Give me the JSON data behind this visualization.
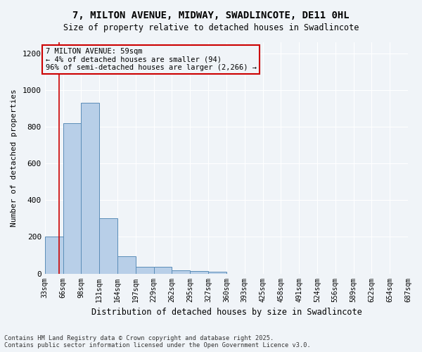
{
  "title_line1": "7, MILTON AVENUE, MIDWAY, SWADLINCOTE, DE11 0HL",
  "title_line2": "Size of property relative to detached houses in Swadlincote",
  "xlabel": "Distribution of detached houses by size in Swadlincote",
  "ylabel": "Number of detached properties",
  "bar_color": "#b8cfe8",
  "bar_edge_color": "#5b8db8",
  "annotation_box_color": "#cc0000",
  "annotation_text": "7 MILTON AVENUE: 59sqm\n← 4% of detached houses are smaller (94)\n96% of semi-detached houses are larger (2,266) →",
  "property_sqm": 59,
  "vline_x": 59,
  "bin_edges": [
    33,
    66,
    99,
    132,
    165,
    198,
    231,
    264,
    297,
    330,
    363,
    396,
    429,
    462,
    495,
    528,
    561,
    594,
    627,
    660,
    693
  ],
  "bin_labels": [
    "33sqm",
    "66sqm",
    "98sqm",
    "131sqm",
    "164sqm",
    "197sqm",
    "229sqm",
    "262sqm",
    "295sqm",
    "327sqm",
    "360sqm",
    "393sqm",
    "425sqm",
    "458sqm",
    "491sqm",
    "524sqm",
    "556sqm",
    "589sqm",
    "622sqm",
    "654sqm",
    "687sqm"
  ],
  "bar_heights": [
    200,
    820,
    930,
    300,
    95,
    38,
    37,
    17,
    12,
    8,
    0,
    0,
    0,
    0,
    0,
    0,
    0,
    0,
    0,
    0
  ],
  "ylim": [
    0,
    1260
  ],
  "yticks": [
    0,
    200,
    400,
    600,
    800,
    1000,
    1200
  ],
  "footer_line1": "Contains HM Land Registry data © Crown copyright and database right 2025.",
  "footer_line2": "Contains public sector information licensed under the Open Government Licence v3.0.",
  "background_color": "#f0f4f8",
  "grid_color": "#ffffff"
}
